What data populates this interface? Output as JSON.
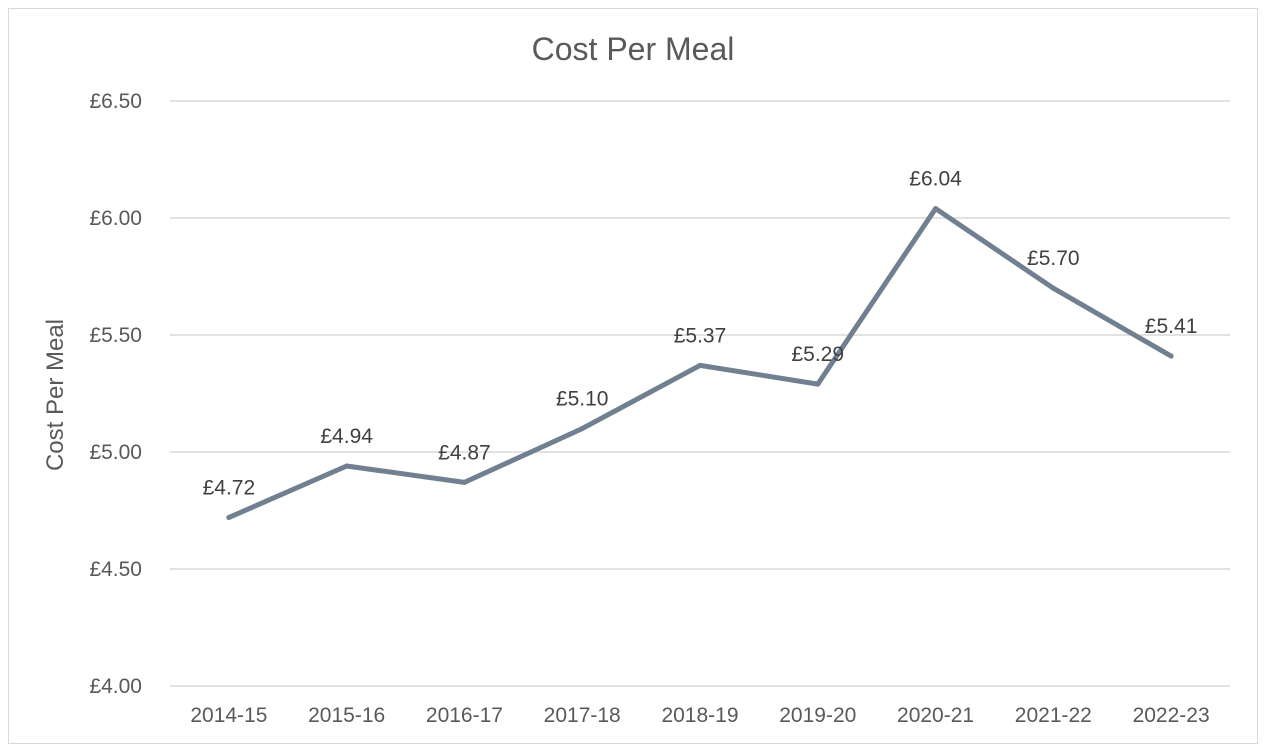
{
  "chart_data": {
    "type": "line",
    "title": "Cost Per Meal",
    "xlabel": "",
    "ylabel": "Cost Per Meal",
    "categories": [
      "2014-15",
      "2015-16",
      "2016-17",
      "2017-18",
      "2018-19",
      "2019-20",
      "2020-21",
      "2021-22",
      "2022-23"
    ],
    "series": [
      {
        "values": [
          4.72,
          4.94,
          4.87,
          5.1,
          5.37,
          5.29,
          6.04,
          5.7,
          5.41
        ],
        "data_labels": [
          "£4.72",
          "£4.94",
          "£4.87",
          "£5.10",
          "£5.37",
          "£5.29",
          "£6.04",
          "£5.70",
          "£5.41"
        ],
        "color": "#718090"
      }
    ],
    "ylim": [
      4.0,
      6.5
    ],
    "y_ticks": [
      4.0,
      4.5,
      5.0,
      5.5,
      6.0,
      6.5
    ],
    "y_tick_labels": [
      "£4.00",
      "£4.50",
      "£5.00",
      "£5.50",
      "£6.00",
      "£6.50"
    ],
    "grid": true,
    "gridline_color": "#d9d9d9",
    "text_color": "#595959",
    "legend": "none"
  }
}
